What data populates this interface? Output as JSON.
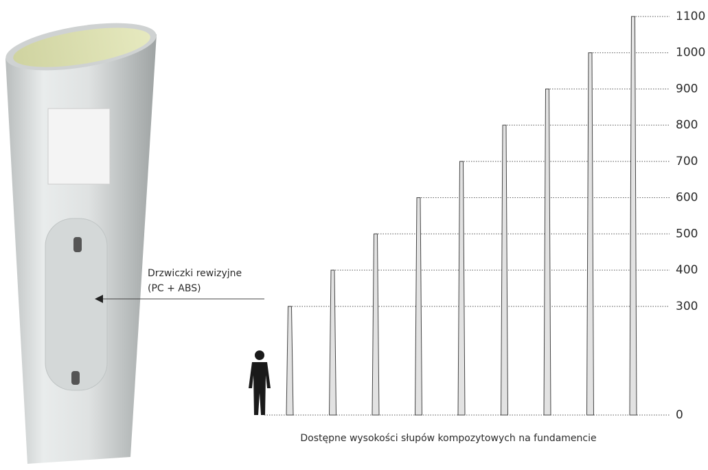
{
  "chart_data": {
    "type": "bar",
    "xlabel": "Dostępne wysokości słupów kompozytowych na fundamencie",
    "annotation": [
      "Drzwiczki rewizyjne",
      "(PC + ABS)"
    ],
    "categories": [
      null,
      null,
      null,
      null,
      null,
      null,
      null,
      null,
      null
    ],
    "values": [
      300,
      400,
      500,
      600,
      700,
      800,
      900,
      1000,
      1100
    ],
    "color": "#e2e2e2",
    "ylim": [
      0,
      1100
    ],
    "yticks": [
      0,
      300,
      400,
      500,
      600,
      700,
      800,
      900,
      1000,
      1100
    ],
    "grid": true
  }
}
